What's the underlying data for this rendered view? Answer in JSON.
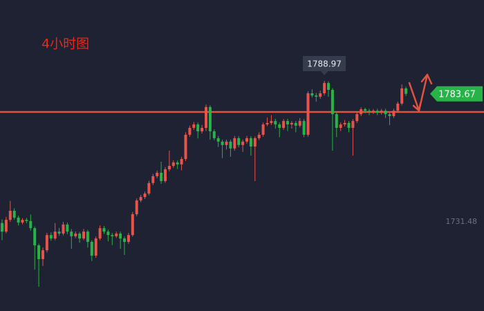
{
  "chart_data": {
    "type": "candlestick",
    "title": "4小时图",
    "up_color": "#e8544a",
    "down_color": "#27b347",
    "level": 1776.3,
    "level_color": "#e0533f",
    "ylim": [
      1695.13,
      1821.94
    ],
    "yticks": [
      1731.48
    ],
    "high_marker": 1788.97,
    "last_price": 1783.67,
    "ohlc": [
      [
        1731.0,
        1732.5,
        1724.0,
        1727.5
      ],
      [
        1727.5,
        1733.5,
        1726.8,
        1732.3
      ],
      [
        1732.3,
        1740.0,
        1731.5,
        1736.0
      ],
      [
        1736.0,
        1737.0,
        1732.4,
        1733.2
      ],
      [
        1733.2,
        1734.0,
        1730.0,
        1731.2
      ],
      [
        1731.2,
        1733.0,
        1730.5,
        1732.3
      ],
      [
        1732.3,
        1733.1,
        1730.9,
        1731.8
      ],
      [
        1731.8,
        1734.5,
        1727.9,
        1728.9
      ],
      [
        1728.9,
        1729.6,
        1712.0,
        1721.9
      ],
      [
        1721.9,
        1722.6,
        1705.0,
        1716.3
      ],
      [
        1716.3,
        1721.0,
        1713.5,
        1719.9
      ],
      [
        1719.9,
        1727.0,
        1719.0,
        1726.1
      ],
      [
        1726.1,
        1727.2,
        1723.8,
        1724.7
      ],
      [
        1724.7,
        1731.0,
        1724.0,
        1727.5
      ],
      [
        1727.5,
        1729.0,
        1725.8,
        1726.7
      ],
      [
        1726.7,
        1731.5,
        1726.0,
        1730.4
      ],
      [
        1730.4,
        1731.2,
        1726.5,
        1727.5
      ],
      [
        1727.5,
        1728.5,
        1720.5,
        1725.6
      ],
      [
        1725.6,
        1727.6,
        1724.8,
        1726.7
      ],
      [
        1726.7,
        1727.4,
        1723.0,
        1724.7
      ],
      [
        1724.7,
        1728.6,
        1724.0,
        1727.5
      ],
      [
        1727.5,
        1728.2,
        1721.0,
        1723.3
      ],
      [
        1723.3,
        1724.0,
        1715.5,
        1717.7
      ],
      [
        1717.7,
        1725.5,
        1716.8,
        1724.7
      ],
      [
        1724.7,
        1730.0,
        1724.0,
        1728.9
      ],
      [
        1728.9,
        1729.8,
        1726.6,
        1727.5
      ],
      [
        1727.5,
        1728.3,
        1723.5,
        1726.1
      ],
      [
        1726.1,
        1727.0,
        1722.0,
        1725.6
      ],
      [
        1725.6,
        1727.5,
        1724.9,
        1726.7
      ],
      [
        1726.7,
        1727.5,
        1720.5,
        1724.7
      ],
      [
        1724.7,
        1725.5,
        1718.0,
        1723.3
      ],
      [
        1723.3,
        1727.0,
        1722.5,
        1726.1
      ],
      [
        1726.1,
        1735.5,
        1725.4,
        1734.6
      ],
      [
        1734.6,
        1741.0,
        1733.8,
        1740.2
      ],
      [
        1740.2,
        1742.5,
        1739.5,
        1741.6
      ],
      [
        1741.6,
        1743.8,
        1740.8,
        1743.0
      ],
      [
        1743.0,
        1748.2,
        1742.3,
        1747.3
      ],
      [
        1747.3,
        1751.0,
        1746.5,
        1750.1
      ],
      [
        1750.1,
        1752.4,
        1749.3,
        1751.5
      ],
      [
        1751.5,
        1756.0,
        1747.0,
        1748.1
      ],
      [
        1748.1,
        1753.8,
        1747.4,
        1752.9
      ],
      [
        1752.9,
        1760.5,
        1752.1,
        1754.3
      ],
      [
        1754.3,
        1756.6,
        1753.5,
        1755.7
      ],
      [
        1755.7,
        1756.5,
        1753.0,
        1754.9
      ],
      [
        1754.9,
        1758.0,
        1752.5,
        1757.1
      ],
      [
        1757.1,
        1768.0,
        1756.3,
        1767.0
      ],
      [
        1767.0,
        1770.7,
        1766.2,
        1769.8
      ],
      [
        1769.8,
        1772.2,
        1769.0,
        1771.2
      ],
      [
        1771.2,
        1772.0,
        1765.5,
        1768.4
      ],
      [
        1768.4,
        1771.0,
        1767.5,
        1769.8
      ],
      [
        1769.8,
        1779.3,
        1768.5,
        1778.3
      ],
      [
        1778.3,
        1779.0,
        1765.0,
        1768.4
      ],
      [
        1768.4,
        1769.2,
        1764.8,
        1765.6
      ],
      [
        1765.6,
        1766.5,
        1762.0,
        1764.2
      ],
      [
        1764.2,
        1765.0,
        1757.5,
        1762.8
      ],
      [
        1762.8,
        1765.0,
        1761.0,
        1764.2
      ],
      [
        1764.2,
        1765.0,
        1758.0,
        1761.4
      ],
      [
        1761.4,
        1766.5,
        1760.5,
        1765.6
      ],
      [
        1765.6,
        1766.4,
        1761.9,
        1762.8
      ],
      [
        1762.8,
        1765.0,
        1760.0,
        1764.2
      ],
      [
        1764.2,
        1766.5,
        1763.4,
        1765.6
      ],
      [
        1765.6,
        1766.4,
        1758.5,
        1762.2
      ],
      [
        1762.2,
        1766.3,
        1748.1,
        1765.6
      ],
      [
        1765.6,
        1768.0,
        1764.8,
        1767.0
      ],
      [
        1767.0,
        1772.0,
        1766.2,
        1771.2
      ],
      [
        1771.2,
        1774.0,
        1770.5,
        1771.8
      ],
      [
        1771.8,
        1775.0,
        1771.0,
        1772.6
      ],
      [
        1772.6,
        1773.5,
        1769.5,
        1771.2
      ],
      [
        1771.2,
        1772.0,
        1766.0,
        1769.8
      ],
      [
        1769.8,
        1773.4,
        1769.0,
        1772.6
      ],
      [
        1772.6,
        1773.5,
        1768.5,
        1771.2
      ],
      [
        1771.2,
        1772.6,
        1769.5,
        1771.8
      ],
      [
        1771.8,
        1772.6,
        1768.0,
        1770.7
      ],
      [
        1770.7,
        1773.8,
        1770.0,
        1772.6
      ],
      [
        1772.6,
        1773.4,
        1766.0,
        1767.0
      ],
      [
        1767.0,
        1784.7,
        1766.2,
        1783.9
      ],
      [
        1783.9,
        1785.5,
        1782.2,
        1783.0
      ],
      [
        1783.0,
        1784.0,
        1780.5,
        1782.5
      ],
      [
        1782.5,
        1785.0,
        1781.7,
        1783.9
      ],
      [
        1783.9,
        1788.97,
        1783.0,
        1788.1
      ],
      [
        1788.1,
        1788.8,
        1782.5,
        1785.3
      ],
      [
        1785.3,
        1786.0,
        1760.5,
        1775.4
      ],
      [
        1775.4,
        1776.2,
        1766.0,
        1769.8
      ],
      [
        1769.8,
        1772.0,
        1768.5,
        1771.2
      ],
      [
        1771.2,
        1773.0,
        1770.4,
        1771.8
      ],
      [
        1771.8,
        1772.6,
        1768.0,
        1769.8
      ],
      [
        1769.8,
        1773.4,
        1758.5,
        1772.6
      ],
      [
        1772.6,
        1776.5,
        1771.8,
        1775.4
      ],
      [
        1775.4,
        1778.2,
        1774.6,
        1777.4
      ],
      [
        1777.4,
        1778.0,
        1775.8,
        1776.8
      ],
      [
        1776.8,
        1777.6,
        1775.0,
        1776.3
      ],
      [
        1776.3,
        1777.5,
        1775.5,
        1776.8
      ],
      [
        1776.8,
        1777.6,
        1775.0,
        1776.0
      ],
      [
        1776.0,
        1777.5,
        1775.2,
        1776.8
      ],
      [
        1776.8,
        1777.6,
        1773.8,
        1775.4
      ],
      [
        1775.4,
        1776.2,
        1771.0,
        1774.6
      ],
      [
        1774.6,
        1777.6,
        1773.8,
        1776.8
      ],
      [
        1776.8,
        1780.5,
        1776.0,
        1779.7
      ],
      [
        1779.7,
        1787.5,
        1779.0,
        1785.9
      ],
      [
        1785.9,
        1786.6,
        1782.8,
        1783.67
      ]
    ]
  }
}
